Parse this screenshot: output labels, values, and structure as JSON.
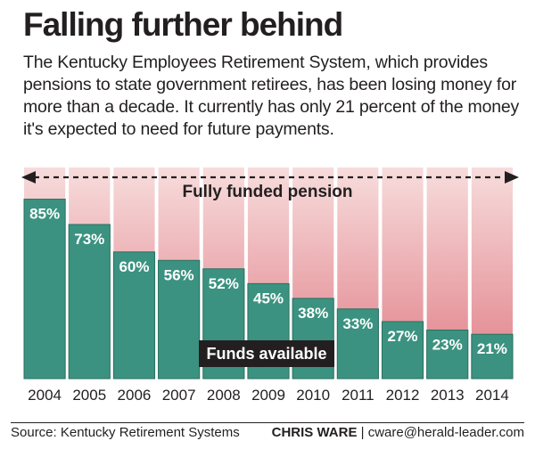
{
  "headline": "Falling further behind",
  "intro": "The Kentucky Employees Retirement System, which provides pensions to state government retirees, has been losing money for more than a decade. It currently has only 21 percent of the money it's expected to need for future payments.",
  "footer": {
    "source": "Source: Kentucky Retirement Systems",
    "credit_name": "CHRIS WARE",
    "credit_separator": " | ",
    "credit_email": "cware@herald-leader.com"
  },
  "colors": {
    "bar": "#3b9280",
    "bar_edge": "#2a6f60",
    "background_band_top": "#f7dcdc",
    "background_band_bottom": "#e07f87",
    "label_box": "#231f20",
    "text": "#231f20"
  },
  "chart_data": {
    "type": "bar",
    "categories": [
      "2004",
      "2005",
      "2006",
      "2007",
      "2008",
      "2009",
      "2010",
      "2011",
      "2012",
      "2013",
      "2014"
    ],
    "values": [
      85,
      73,
      60,
      56,
      52,
      45,
      38,
      33,
      27,
      23,
      21
    ],
    "value_labels": [
      "85%",
      "73%",
      "60%",
      "56%",
      "52%",
      "45%",
      "38%",
      "33%",
      "27%",
      "23%",
      "21%"
    ],
    "ylim": [
      0,
      100
    ],
    "full_funding_label": "Fully funded pension",
    "funds_label": "Funds available",
    "grid": false
  }
}
